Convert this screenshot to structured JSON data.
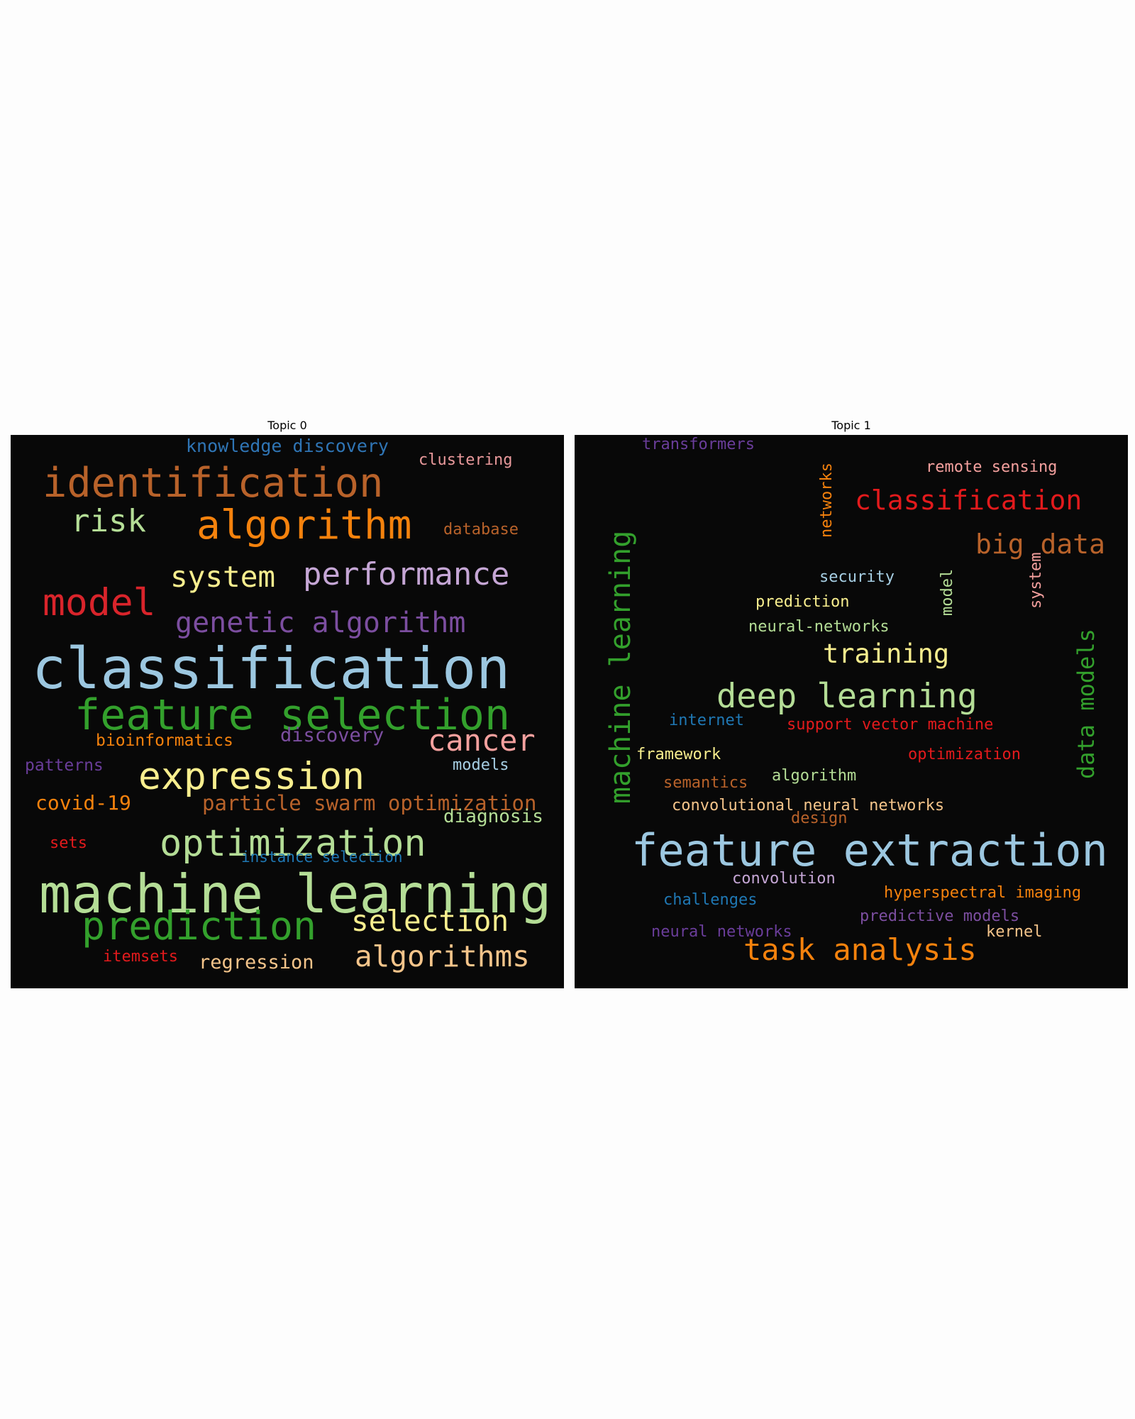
{
  "chart_data": [
    {
      "type": "wordcloud",
      "title": "Topic 0",
      "words": [
        {
          "text": "knowledge discovery",
          "weight": 3,
          "color": "#2f75b5"
        },
        {
          "text": "clustering",
          "weight": 2,
          "color": "#e8999b"
        },
        {
          "text": "identification",
          "weight": 7,
          "color": "#b8622a"
        },
        {
          "text": "risk",
          "weight": 5,
          "color": "#b4dd96"
        },
        {
          "text": "algorithm",
          "weight": 7,
          "color": "#f5820d"
        },
        {
          "text": "database",
          "weight": 2,
          "color": "#b8622a"
        },
        {
          "text": "system",
          "weight": 5,
          "color": "#f8ee8e"
        },
        {
          "text": "performance",
          "weight": 6,
          "color": "#c5a6d5"
        },
        {
          "text": "model",
          "weight": 7,
          "color": "#d9242b"
        },
        {
          "text": "genetic algorithm",
          "weight": 5,
          "color": "#7c4ea0"
        },
        {
          "text": "classification",
          "weight": 10,
          "color": "#9cc7e0"
        },
        {
          "text": "feature selection",
          "weight": 8,
          "color": "#33a02c"
        },
        {
          "text": "bioinformatics",
          "weight": 2,
          "color": "#f5820d"
        },
        {
          "text": "discovery",
          "weight": 3,
          "color": "#7c4ea0"
        },
        {
          "text": "cancer",
          "weight": 5,
          "color": "#f4a09e"
        },
        {
          "text": "patterns",
          "weight": 2,
          "color": "#6a3d9a"
        },
        {
          "text": "models",
          "weight": 2,
          "color": "#a6cee3"
        },
        {
          "text": "expression",
          "weight": 7,
          "color": "#f8ee8e"
        },
        {
          "text": "covid-19",
          "weight": 3,
          "color": "#f5820d"
        },
        {
          "text": "particle swarm optimization",
          "weight": 3,
          "color": "#b8622a"
        },
        {
          "text": "diagnosis",
          "weight": 3,
          "color": "#b4dd96"
        },
        {
          "text": "sets",
          "weight": 2,
          "color": "#e31a1c"
        },
        {
          "text": "optimization",
          "weight": 7,
          "color": "#b4dd96"
        },
        {
          "text": "instance selection",
          "weight": 2,
          "color": "#1f78b4"
        },
        {
          "text": "machine learning",
          "weight": 10,
          "color": "#b4dd96"
        },
        {
          "text": "prediction",
          "weight": 7,
          "color": "#33a02c"
        },
        {
          "text": "selection",
          "weight": 5,
          "color": "#f8ee8e"
        },
        {
          "text": "itemsets",
          "weight": 2,
          "color": "#e31a1c"
        },
        {
          "text": "regression",
          "weight": 3,
          "color": "#f4c48a"
        },
        {
          "text": "algorithms",
          "weight": 5,
          "color": "#f4c48a"
        }
      ]
    },
    {
      "type": "wordcloud",
      "title": "Topic 1",
      "words": [
        {
          "text": "transformers",
          "weight": 2,
          "color": "#6a3d9a"
        },
        {
          "text": "remote sensing",
          "weight": 2,
          "color": "#f4a09e"
        },
        {
          "text": "classification",
          "weight": 5,
          "color": "#e31a1c"
        },
        {
          "text": "networks",
          "weight": 2,
          "color": "#f5820d"
        },
        {
          "text": "big data",
          "weight": 5,
          "color": "#b8622a"
        },
        {
          "text": "machine learning",
          "weight": 7,
          "color": "#33a02c"
        },
        {
          "text": "security",
          "weight": 2,
          "color": "#a6cee3"
        },
        {
          "text": "model",
          "weight": 2,
          "color": "#b4dd96"
        },
        {
          "text": "system",
          "weight": 2,
          "color": "#f4a09e"
        },
        {
          "text": "prediction",
          "weight": 2,
          "color": "#f8ee8e"
        },
        {
          "text": "neural-networks",
          "weight": 2,
          "color": "#b4dd96"
        },
        {
          "text": "training",
          "weight": 5,
          "color": "#f8ee8e"
        },
        {
          "text": "data models",
          "weight": 5,
          "color": "#33a02c"
        },
        {
          "text": "deep learning",
          "weight": 7,
          "color": "#b4dd96"
        },
        {
          "text": "internet",
          "weight": 2,
          "color": "#1f78b4"
        },
        {
          "text": "support vector machine",
          "weight": 2,
          "color": "#e31a1c"
        },
        {
          "text": "framework",
          "weight": 2,
          "color": "#f8ee8e"
        },
        {
          "text": "optimization",
          "weight": 2,
          "color": "#e31a1c"
        },
        {
          "text": "semantics",
          "weight": 2,
          "color": "#b8622a"
        },
        {
          "text": "algorithm",
          "weight": 2,
          "color": "#b4dd96"
        },
        {
          "text": "convolutional neural networks",
          "weight": 2,
          "color": "#f4c48a"
        },
        {
          "text": "design",
          "weight": 2,
          "color": "#b8622a"
        },
        {
          "text": "feature extraction",
          "weight": 10,
          "color": "#9cc7e0"
        },
        {
          "text": "convolution",
          "weight": 2,
          "color": "#c5a6d5"
        },
        {
          "text": "hyperspectral imaging",
          "weight": 2,
          "color": "#f5820d"
        },
        {
          "text": "challenges",
          "weight": 2,
          "color": "#1f78b4"
        },
        {
          "text": "predictive models",
          "weight": 2,
          "color": "#7c4ea0"
        },
        {
          "text": "neural networks",
          "weight": 2,
          "color": "#6a3d9a"
        },
        {
          "text": "kernel",
          "weight": 2,
          "color": "#f4c48a"
        },
        {
          "text": "task analysis",
          "weight": 5,
          "color": "#f5820d"
        }
      ]
    }
  ]
}
